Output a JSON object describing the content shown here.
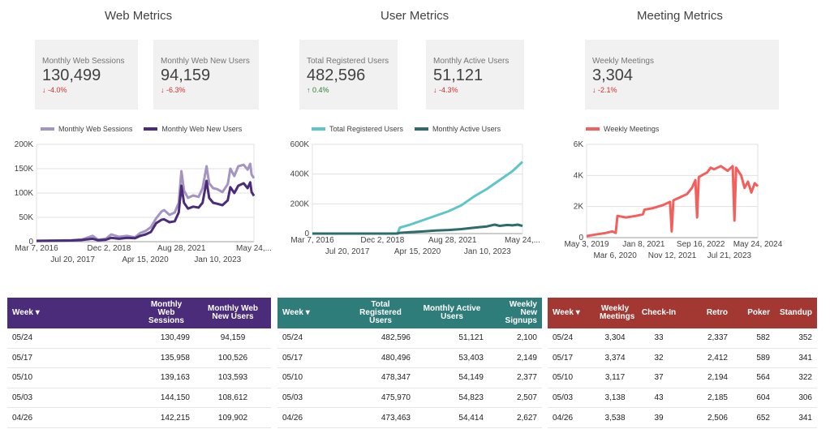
{
  "sections": {
    "web": "Web Metrics",
    "user": "User Metrics",
    "meeting": "Meeting Metrics"
  },
  "scorecards": {
    "web_sessions": {
      "label": "Monthly Web Sessions",
      "value": "130,499",
      "delta": "↓ -4.0%"
    },
    "web_new_users": {
      "label": "Monthly Web New Users",
      "value": "94,159",
      "delta": "↓ -6.3%"
    },
    "registered": {
      "label": "Total Registered Users",
      "value": "482,596",
      "delta": "↑ 0.4%"
    },
    "active": {
      "label": "Monthly Active Users",
      "value": "51,121",
      "delta": "↓ -4.3%"
    },
    "meetings": {
      "label": "Weekly Meetings",
      "value": "3,304",
      "delta": "↓ -2.1%"
    }
  },
  "colors": {
    "web_sessions": "#a394c4",
    "web_new_users": "#4a2c7a",
    "registered": "#5ec6c8",
    "active": "#2e6b6b",
    "meetings": "#f25f5c",
    "table_web": "#4a2c7a",
    "table_user": "#2f7d7a",
    "table_meeting": "#a33832"
  },
  "chart_data": [
    {
      "type": "line",
      "title": "",
      "legend": "top",
      "series": [
        {
          "name": "Monthly Web Sessions",
          "values": [
            [
              2016.18,
              2000
            ],
            [
              2017.0,
              2500
            ],
            [
              2017.5,
              3000
            ],
            [
              2017.9,
              4500
            ],
            [
              2018.3,
              12000
            ],
            [
              2018.5,
              4000
            ],
            [
              2018.8,
              6000
            ],
            [
              2019.0,
              15000
            ],
            [
              2019.3,
              10000
            ],
            [
              2019.6,
              12000
            ],
            [
              2019.9,
              9000
            ],
            [
              2020.1,
              18000
            ],
            [
              2020.3,
              22000
            ],
            [
              2020.5,
              30000
            ],
            [
              2020.7,
              48000
            ],
            [
              2020.9,
              62000
            ],
            [
              2021.0,
              65000
            ],
            [
              2021.2,
              55000
            ],
            [
              2021.4,
              60000
            ],
            [
              2021.55,
              80000
            ],
            [
              2021.65,
              145000
            ],
            [
              2021.75,
              105000
            ],
            [
              2021.9,
              90000
            ],
            [
              2022.1,
              95000
            ],
            [
              2022.3,
              92000
            ],
            [
              2022.45,
              110000
            ],
            [
              2022.6,
              155000
            ],
            [
              2022.7,
              120000
            ],
            [
              2022.85,
              110000
            ],
            [
              2023.0,
              108000
            ],
            [
              2023.2,
              102000
            ],
            [
              2023.4,
              118000
            ],
            [
              2023.5,
              150000
            ],
            [
              2023.65,
              135000
            ],
            [
              2023.8,
              155000
            ],
            [
              2024.0,
              158000
            ],
            [
              2024.15,
              148000
            ],
            [
              2024.25,
              160000
            ],
            [
              2024.3,
              138000
            ],
            [
              2024.39,
              130499
            ]
          ]
        },
        {
          "name": "Monthly Web New Users",
          "values": [
            [
              2016.18,
              1500
            ],
            [
              2017.0,
              2000
            ],
            [
              2017.5,
              2500
            ],
            [
              2017.9,
              3500
            ],
            [
              2018.3,
              6000
            ],
            [
              2018.5,
              3000
            ],
            [
              2018.8,
              4000
            ],
            [
              2019.0,
              8000
            ],
            [
              2019.3,
              6000
            ],
            [
              2019.6,
              8000
            ],
            [
              2019.9,
              7000
            ],
            [
              2020.1,
              12000
            ],
            [
              2020.3,
              15000
            ],
            [
              2020.5,
              20000
            ],
            [
              2020.7,
              38000
            ],
            [
              2020.9,
              45000
            ],
            [
              2021.0,
              46000
            ],
            [
              2021.2,
              40000
            ],
            [
              2021.4,
              42000
            ],
            [
              2021.55,
              60000
            ],
            [
              2021.65,
              115000
            ],
            [
              2021.75,
              80000
            ],
            [
              2021.9,
              68000
            ],
            [
              2022.1,
              72000
            ],
            [
              2022.3,
              70000
            ],
            [
              2022.45,
              80000
            ],
            [
              2022.6,
              125000
            ],
            [
              2022.7,
              90000
            ],
            [
              2022.85,
              80000
            ],
            [
              2023.0,
              78000
            ],
            [
              2023.2,
              75000
            ],
            [
              2023.4,
              85000
            ],
            [
              2023.5,
              112000
            ],
            [
              2023.65,
              100000
            ],
            [
              2023.8,
              115000
            ],
            [
              2024.0,
              120000
            ],
            [
              2024.15,
              110000
            ],
            [
              2024.25,
              122000
            ],
            [
              2024.3,
              102000
            ],
            [
              2024.39,
              94159
            ]
          ]
        }
      ],
      "ylim": [
        0,
        200000
      ],
      "y_ticks": [
        "0",
        "50K",
        "100K",
        "150K",
        "200K"
      ],
      "x_ticks_top": [
        "Mar 7, 2016",
        "Dec 2, 2018",
        "Aug 28, 2021",
        "May 24,..."
      ],
      "x_ticks_bottom": [
        "Jul 20, 2017",
        "Apr 15, 2020",
        "Jan 10, 2023"
      ]
    },
    {
      "type": "line",
      "title": "",
      "legend": "top",
      "series": [
        {
          "name": "Total Registered Users",
          "values": [
            [
              2016.18,
              0
            ],
            [
              2019.5,
              0
            ],
            [
              2019.6,
              40000
            ],
            [
              2020.0,
              60000
            ],
            [
              2020.5,
              90000
            ],
            [
              2021.0,
              120000
            ],
            [
              2021.5,
              150000
            ],
            [
              2022.0,
              190000
            ],
            [
              2022.5,
              250000
            ],
            [
              2023.0,
              300000
            ],
            [
              2023.5,
              360000
            ],
            [
              2024.0,
              420000
            ],
            [
              2024.39,
              482596
            ]
          ]
        },
        {
          "name": "Monthly Active Users",
          "values": [
            [
              2016.18,
              0
            ],
            [
              2019.5,
              0
            ],
            [
              2019.6,
              5000
            ],
            [
              2020.0,
              10000
            ],
            [
              2020.5,
              14000
            ],
            [
              2021.0,
              20000
            ],
            [
              2021.5,
              24000
            ],
            [
              2022.0,
              30000
            ],
            [
              2022.5,
              40000
            ],
            [
              2023.0,
              48000
            ],
            [
              2023.3,
              60000
            ],
            [
              2023.5,
              52000
            ],
            [
              2023.8,
              58000
            ],
            [
              2024.0,
              55000
            ],
            [
              2024.2,
              60000
            ],
            [
              2024.39,
              51121
            ]
          ]
        }
      ],
      "ylim": [
        0,
        600000
      ],
      "y_ticks": [
        "0",
        "200K",
        "400K",
        "600K"
      ],
      "x_ticks_top": [
        "Mar 7, 2016",
        "Dec 2, 2018",
        "Aug 28, 2021",
        "May 24,..."
      ],
      "x_ticks_bottom": [
        "Jul 20, 2017",
        "Apr 15, 2020",
        "Jan 10, 2023"
      ]
    },
    {
      "type": "line",
      "title": "",
      "legend": "top",
      "series": [
        {
          "name": "Weekly Meetings",
          "values": [
            [
              2019.34,
              100
            ],
            [
              2019.6,
              200
            ],
            [
              2019.9,
              300
            ],
            [
              2020.1,
              400
            ],
            [
              2020.2,
              300
            ],
            [
              2020.25,
              1400
            ],
            [
              2020.5,
              1300
            ],
            [
              2020.8,
              1400
            ],
            [
              2021.0,
              1500
            ],
            [
              2021.05,
              1800
            ],
            [
              2021.3,
              1900
            ],
            [
              2021.6,
              2100
            ],
            [
              2021.8,
              2300
            ],
            [
              2021.85,
              400
            ],
            [
              2021.9,
              2400
            ],
            [
              2022.1,
              2600
            ],
            [
              2022.3,
              2800
            ],
            [
              2022.45,
              3200
            ],
            [
              2022.55,
              3700
            ],
            [
              2022.6,
              1300
            ],
            [
              2022.65,
              3900
            ],
            [
              2022.9,
              4200
            ],
            [
              2023.0,
              4500
            ],
            [
              2023.1,
              4400
            ],
            [
              2023.3,
              4600
            ],
            [
              2023.5,
              4300
            ],
            [
              2023.65,
              4600
            ],
            [
              2023.7,
              1100
            ],
            [
              2023.75,
              4500
            ],
            [
              2023.9,
              4000
            ],
            [
              2024.0,
              3200
            ],
            [
              2024.1,
              3600
            ],
            [
              2024.2,
              2900
            ],
            [
              2024.3,
              3500
            ],
            [
              2024.39,
              3304
            ]
          ]
        }
      ],
      "ylim": [
        0,
        6000
      ],
      "y_ticks": [
        "0",
        "2K",
        "4K",
        "6K"
      ],
      "x_ticks_top": [
        "May 3, 2019",
        "Jan 8, 2021",
        "Sep 16, 2022",
        "May 24, 2024"
      ],
      "x_ticks_bottom": [
        "Mar 6, 2020",
        "Nov 12, 2021",
        "Jul 21, 2023"
      ]
    }
  ],
  "tables": {
    "web": {
      "headers": [
        "Week ▾",
        "Monthly Web Sessions",
        "Monthly Web New Users"
      ],
      "rows": [
        [
          "05/24",
          "130,499",
          "94,159"
        ],
        [
          "05/17",
          "135,958",
          "100,526"
        ],
        [
          "05/10",
          "139,163",
          "103,593"
        ],
        [
          "05/03",
          "144,150",
          "108,612"
        ],
        [
          "04/26",
          "142,215",
          "109,902"
        ]
      ]
    },
    "user": {
      "headers": [
        "Week ▾",
        "Total Registered Users",
        "Monthly Active Users",
        "Weekly New Signups"
      ],
      "rows": [
        [
          "05/24",
          "482,596",
          "51,121",
          "2,100"
        ],
        [
          "05/17",
          "480,496",
          "53,403",
          "2,149"
        ],
        [
          "05/10",
          "478,347",
          "54,149",
          "2,377"
        ],
        [
          "05/03",
          "475,970",
          "54,823",
          "2,507"
        ],
        [
          "04/26",
          "473,463",
          "54,414",
          "2,627"
        ]
      ]
    },
    "meeting": {
      "headers": [
        "Week ▾",
        "Weekly Meetings",
        "Check-In",
        "Retro",
        "Poker",
        "Standup"
      ],
      "rows": [
        [
          "05/24",
          "3,304",
          "33",
          "2,337",
          "582",
          "352"
        ],
        [
          "05/17",
          "3,374",
          "32",
          "2,412",
          "589",
          "341"
        ],
        [
          "05/10",
          "3,117",
          "37",
          "2,194",
          "564",
          "322"
        ],
        [
          "05/03",
          "3,138",
          "43",
          "2,185",
          "604",
          "306"
        ],
        [
          "04/26",
          "3,538",
          "39",
          "2,506",
          "652",
          "341"
        ]
      ]
    }
  }
}
